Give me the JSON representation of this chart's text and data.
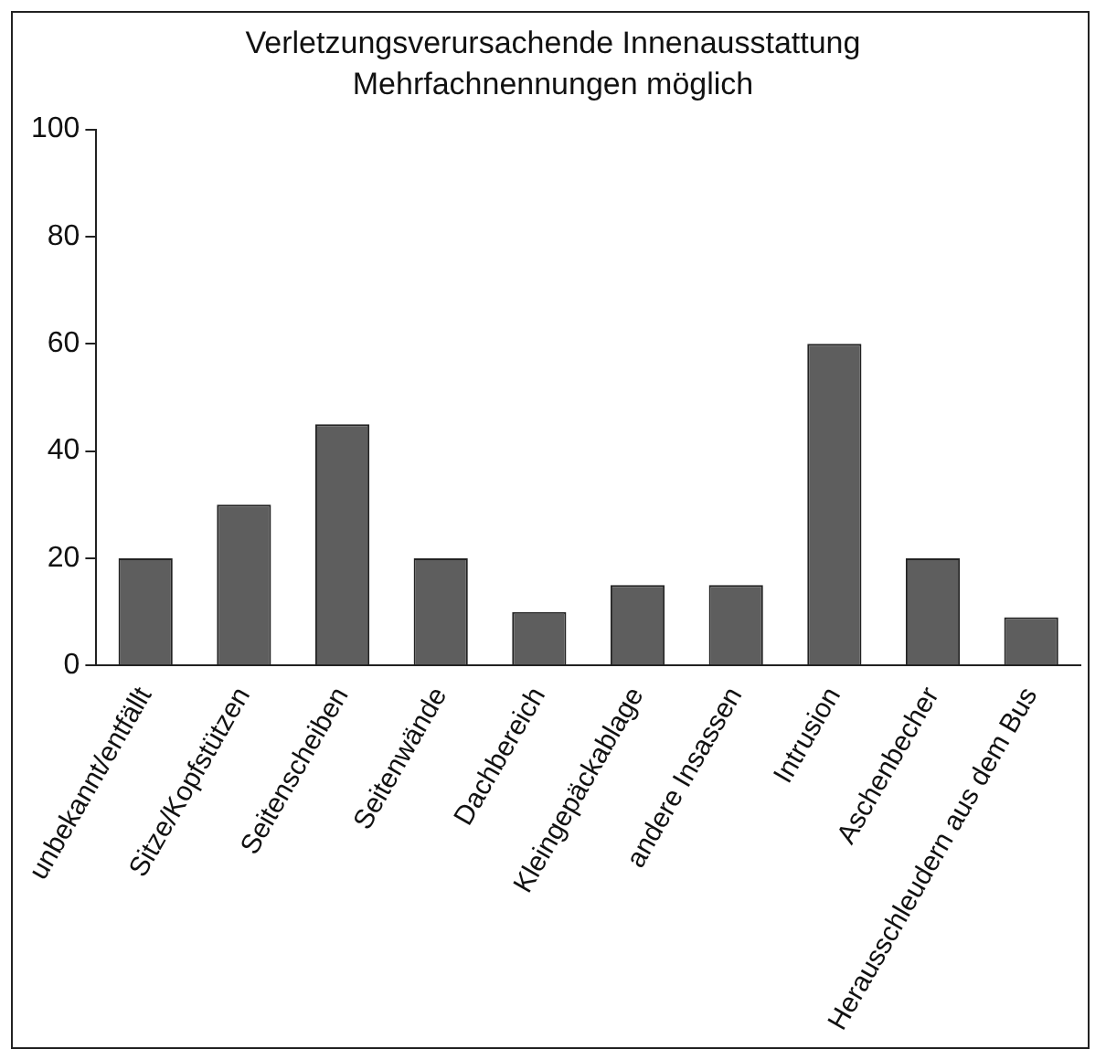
{
  "chart_data": {
    "type": "bar",
    "title": "Verletzungsverursachende Innenausstattung",
    "subtitle": "Mehrfachnennungen möglich",
    "categories": [
      "unbekannt/entfällt",
      "Sitze/Kopfstützen",
      "Seitenscheiben",
      "Seitenwände",
      "Dachbereich",
      "Kleingepäckablage",
      "andere Insassen",
      "Intrusion",
      "Aschenbecher",
      "Herausschleudern aus dem Bus"
    ],
    "values": [
      20,
      30,
      45,
      20,
      10,
      15,
      15,
      60,
      20,
      9
    ],
    "color": "#5e5e5e",
    "ylim": [
      0,
      100
    ],
    "yticks": [
      0,
      20,
      40,
      60,
      80,
      100
    ],
    "grid": false,
    "legend": false
  }
}
